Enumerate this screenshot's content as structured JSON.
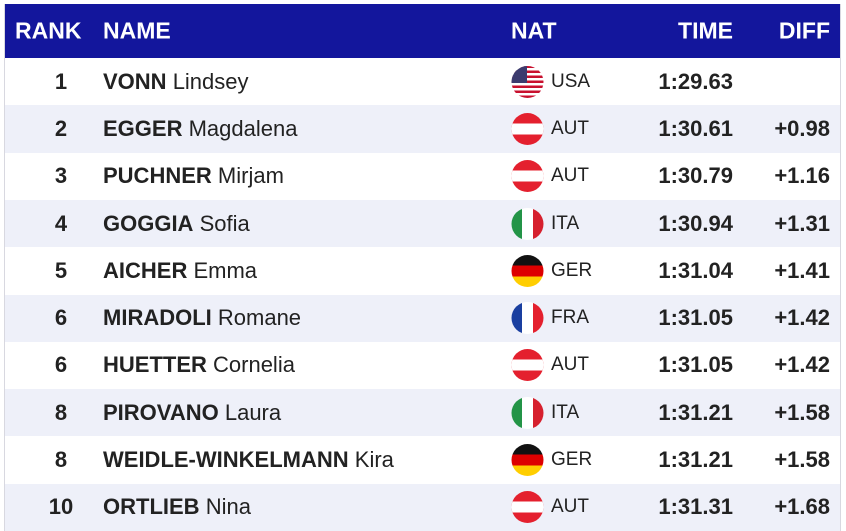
{
  "header": {
    "rank": "RANK",
    "name": "NAME",
    "nat": "NAT",
    "time": "TIME",
    "diff": "DIFF"
  },
  "rows": [
    {
      "rank": 1,
      "surname": "VONN",
      "firstname": "Lindsey",
      "nat": "USA",
      "time": "1:29.63"
    },
    {
      "rank": 2,
      "surname": "EGGER",
      "firstname": "Magdalena",
      "nat": "AUT",
      "time": "1:30.61",
      "diff": "+0.98"
    },
    {
      "rank": 3,
      "surname": "PUCHNER",
      "firstname": "Mirjam",
      "nat": "AUT",
      "time": "1:30.79",
      "diff": "+1.16"
    },
    {
      "rank": 4,
      "surname": "GOGGIA",
      "firstname": "Sofia",
      "nat": "ITA",
      "time": "1:30.94",
      "diff": "+1.31"
    },
    {
      "rank": 5,
      "surname": "AICHER",
      "firstname": "Emma",
      "nat": "GER",
      "time": "1:31.04",
      "diff": "+1.41"
    },
    {
      "rank": 6,
      "surname": "MIRADOLI",
      "firstname": "Romane",
      "nat": "FRA",
      "time": "1:31.05",
      "diff": "+1.42"
    },
    {
      "rank": 6,
      "surname": "HUETTER",
      "firstname": "Cornelia",
      "nat": "AUT",
      "time": "1:31.05",
      "diff": "+1.42"
    },
    {
      "rank": 8,
      "surname": "PIROVANO",
      "firstname": "Laura",
      "nat": "ITA",
      "time": "1:31.21",
      "diff": "+1.58"
    },
    {
      "rank": 8,
      "surname": "WEIDLE-WINKELMANN",
      "firstname": "Kira",
      "nat": "GER",
      "time": "1:31.21",
      "diff": "+1.58"
    },
    {
      "rank": 10,
      "surname": "ORTLIEB",
      "firstname": "Nina",
      "nat": "AUT",
      "time": "1:31.31",
      "diff": "+1.68"
    }
  ]
}
